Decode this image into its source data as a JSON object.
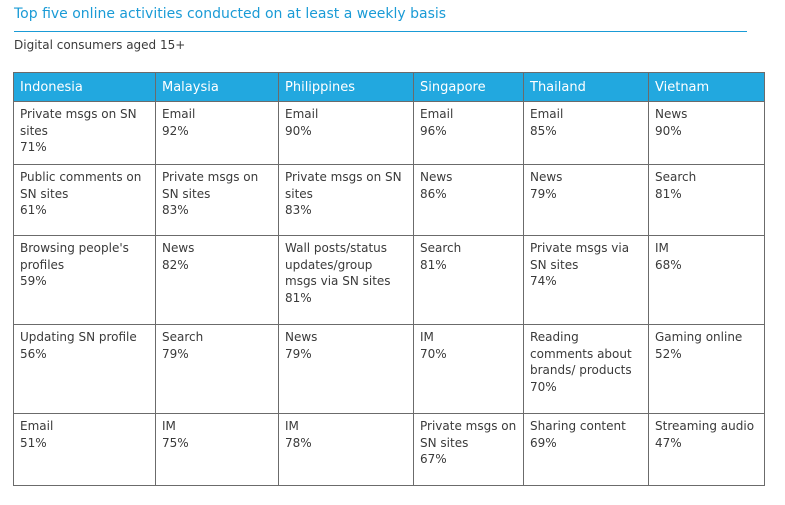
{
  "title": "Top five online activities conducted on at least a weekly basis",
  "subtitle": "Digital consumers aged 15+",
  "columns": [
    "Indonesia",
    "Malaysia",
    "Philippines",
    "Singapore",
    "Thailand",
    "Vietnam"
  ],
  "rows": [
    [
      {
        "activity": "Private msgs on SN sites",
        "pct": "71%"
      },
      {
        "activity": "Email",
        "pct": "92%"
      },
      {
        "activity": "Email",
        "pct": "90%"
      },
      {
        "activity": "Email",
        "pct": "96%"
      },
      {
        "activity": "Email",
        "pct": "85%"
      },
      {
        "activity": "News",
        "pct": "90%"
      }
    ],
    [
      {
        "activity": "Public comments on SN sites",
        "pct": "61%"
      },
      {
        "activity": "Private msgs on SN sites",
        "pct": "83%"
      },
      {
        "activity": "Private msgs on SN sites",
        "pct": "83%"
      },
      {
        "activity": "News",
        "pct": "86%"
      },
      {
        "activity": "News",
        "pct": "79%"
      },
      {
        "activity": "Search",
        "pct": "81%"
      }
    ],
    [
      {
        "activity": "Browsing people's profiles",
        "pct": "59%"
      },
      {
        "activity": "News",
        "pct": "82%"
      },
      {
        "activity": "Wall posts/status updates/group msgs via SN sites",
        "pct": "81%"
      },
      {
        "activity": "Search",
        "pct": "81%"
      },
      {
        "activity": "Private msgs via SN sites",
        "pct": "74%"
      },
      {
        "activity": "IM",
        "pct": "68%"
      }
    ],
    [
      {
        "activity": "Updating SN profile",
        "pct": "56%"
      },
      {
        "activity": "Search",
        "pct": "79%"
      },
      {
        "activity": "News",
        "pct": "79%"
      },
      {
        "activity": "IM",
        "pct": "70%"
      },
      {
        "activity": "Reading comments about brands/ products",
        "pct": "70%"
      },
      {
        "activity": "Gaming online",
        "pct": "52%"
      }
    ],
    [
      {
        "activity": "Email",
        "pct": "51%"
      },
      {
        "activity": "IM",
        "pct": "75%"
      },
      {
        "activity": "IM",
        "pct": "78%"
      },
      {
        "activity": "Private msgs on SN sites",
        "pct": "67%"
      },
      {
        "activity": "Sharing content",
        "pct": "69%"
      },
      {
        "activity": "Streaming audio",
        "pct": "47%"
      }
    ]
  ]
}
